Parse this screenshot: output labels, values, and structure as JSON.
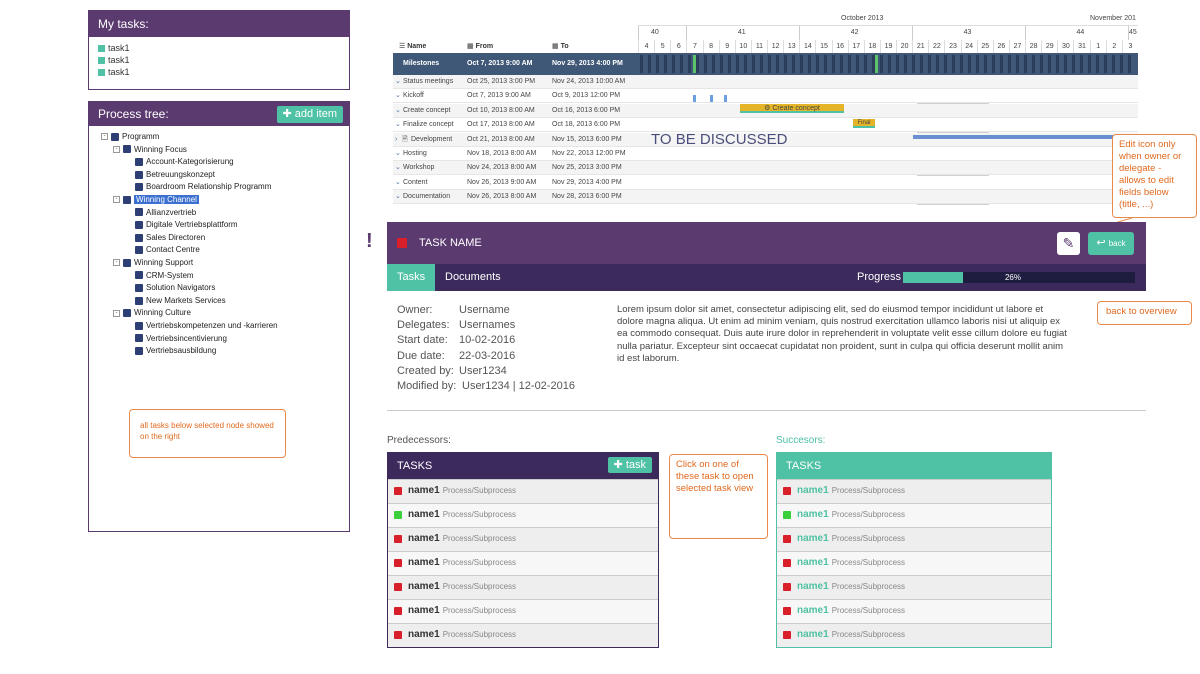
{
  "my_tasks": {
    "title": "My tasks:",
    "items": [
      "task1",
      "task1",
      "task1"
    ]
  },
  "process_tree": {
    "title": "Process tree:",
    "add_label": "add item",
    "nodes": [
      {
        "label": "Programm",
        "level": 0,
        "toggle": "-"
      },
      {
        "label": "Winning Focus",
        "level": 1,
        "toggle": "-"
      },
      {
        "label": "Account-Kategorisierung",
        "level": 2
      },
      {
        "label": "Betreuungskonzept",
        "level": 2
      },
      {
        "label": "Boardroom Relationship Programm",
        "level": 2
      },
      {
        "label": "Winning Channel",
        "level": 1,
        "toggle": "-",
        "selected": true
      },
      {
        "label": "Allianzvertrieb",
        "level": 2
      },
      {
        "label": "Digitale Vertriebsplattform",
        "level": 2
      },
      {
        "label": "Sales Directoren",
        "level": 2
      },
      {
        "label": "Contact Centre",
        "level": 2
      },
      {
        "label": "Winning Support",
        "level": 1,
        "toggle": "-"
      },
      {
        "label": "CRM-System",
        "level": 2
      },
      {
        "label": "Solution Navigators",
        "level": 2
      },
      {
        "label": "New Markets Services",
        "level": 2
      },
      {
        "label": "Winning Culture",
        "level": 1,
        "toggle": "-"
      },
      {
        "label": "Vertriebskompetenzen und -karrieren",
        "level": 2
      },
      {
        "label": "Vertriebsincentivierung",
        "level": 2
      },
      {
        "label": "Vertriebsausbildung",
        "level": 2
      }
    ]
  },
  "notes": {
    "tree_note": "all tasks below selected node showed on the right",
    "edit_note": "Edit icon only when owner or delegate - allows to edit fields below (title, ...)",
    "back_note": "back to overview",
    "click_note": "Click on one of these task to open selected task view"
  },
  "gantt": {
    "month1": "October 2013",
    "month2": "November 201",
    "weeks": [
      "40",
      "41",
      "42",
      "43",
      "44",
      "45"
    ],
    "days": [
      "4",
      "5",
      "6",
      "7",
      "8",
      "9",
      "10",
      "11",
      "12",
      "13",
      "14",
      "15",
      "16",
      "17",
      "18",
      "19",
      "20",
      "21",
      "22",
      "23",
      "24",
      "25",
      "26",
      "27",
      "28",
      "29",
      "30",
      "31",
      "1",
      "2",
      "3"
    ],
    "col_name": "Name",
    "col_from": "From",
    "col_to": "To",
    "milestones": {
      "name": "Milestones",
      "from": "Oct 7, 2013 9:00 AM",
      "to": "Nov 29, 2013 4:00 PM"
    },
    "rows": [
      {
        "name": "Status meetings",
        "from": "Oct 25, 2013 3:00 PM",
        "to": "Nov 24, 2013 10:00 AM"
      },
      {
        "name": "Kickoff",
        "from": "Oct 7, 2013 9:00 AM",
        "to": "Oct 9, 2013 12:00 PM"
      },
      {
        "name": "Create concept",
        "from": "Oct 10, 2013 8:00 AM",
        "to": "Oct 16, 2013 6:00 PM"
      },
      {
        "name": "Finalize concept",
        "from": "Oct 17, 2013 8:00 AM",
        "to": "Oct 18, 2013 6:00 PM"
      },
      {
        "name": "Development",
        "from": "Oct 21, 2013 8:00 AM",
        "to": "Nov 15, 2013 6:00 PM"
      },
      {
        "name": "Hosting",
        "from": "Nov 18, 2013 8:00 AM",
        "to": "Nov 22, 2013 12:00 PM"
      },
      {
        "name": "Workshop",
        "from": "Nov 24, 2013 8:00 AM",
        "to": "Nov 25, 2013 3:00 PM"
      },
      {
        "name": "Content",
        "from": "Nov 26, 2013 9:00 AM",
        "to": "Nov 29, 2013 4:00 PM"
      },
      {
        "name": "Documentation",
        "from": "Nov 26, 2013 8:00 AM",
        "to": "Nov 28, 2013 6:00 PM"
      }
    ],
    "bar_create": "Create concept",
    "bar_final": "Final",
    "overlay": "TO BE DISCUSSED"
  },
  "task": {
    "alert": "!",
    "name": "TASK NAME",
    "back_label": "back",
    "tabs": [
      "Tasks",
      "Documents"
    ],
    "progress_label": "Progress",
    "progress_text": "26%",
    "progress_value": 0.26,
    "fields": [
      {
        "label": "Owner:",
        "value": "Username"
      },
      {
        "label": "Delegates:",
        "value": "Usernames"
      },
      {
        "label": "Start date:",
        "value": "10-02-2016"
      },
      {
        "label": "Due date:",
        "value": "22-03-2016"
      },
      {
        "label": "Created by:",
        "value": "User1234"
      },
      {
        "label": "Modified by:",
        "value": "User1234 | 12-02-2016"
      }
    ],
    "description": "Lorem ipsum dolor sit amet, consectetur adipiscing elit, sed do eiusmod tempor incididunt ut labore et dolore magna aliqua. Ut enim ad minim veniam, quis nostrud exercitation ullamco laboris nisi ut aliquip ex ea commodo consequat. Duis aute irure dolor in reprehenderit in voluptate velit esse cillum dolore eu fugiat nulla pariatur. Excepteur sint occaecat cupidatat non proident, sunt in culpa qui officia deserunt mollit anim id est laborum."
  },
  "predecessors": {
    "title": "Predecessors:",
    "header": "TASKS",
    "add_label": "task",
    "rows": [
      {
        "name": "name1",
        "path": "Process/Subprocess",
        "status": "red"
      },
      {
        "name": "name1",
        "path": "Process/Subprocess",
        "status": "green"
      },
      {
        "name": "name1",
        "path": "Process/Subprocess",
        "status": "red"
      },
      {
        "name": "name1",
        "path": "Process/Subprocess",
        "status": "red"
      },
      {
        "name": "name1",
        "path": "Process/Subprocess",
        "status": "red"
      },
      {
        "name": "name1",
        "path": "Process/Subprocess",
        "status": "red"
      },
      {
        "name": "name1",
        "path": "Process/Subprocess",
        "status": "red"
      }
    ]
  },
  "successors": {
    "title": "Succesors:",
    "header": "TASKS",
    "rows": [
      {
        "name": "name1",
        "path": "Process/Subprocess",
        "status": "red"
      },
      {
        "name": "name1",
        "path": "Process/Subprocess",
        "status": "green"
      },
      {
        "name": "name1",
        "path": "Process/Subprocess",
        "status": "red"
      },
      {
        "name": "name1",
        "path": "Process/Subprocess",
        "status": "red"
      },
      {
        "name": "name1",
        "path": "Process/Subprocess",
        "status": "red"
      },
      {
        "name": "name1",
        "path": "Process/Subprocess",
        "status": "red"
      },
      {
        "name": "name1",
        "path": "Process/Subprocess",
        "status": "red"
      }
    ]
  },
  "colors": {
    "purple": "#5b3a70",
    "dark_purple": "#3d2a5c",
    "teal": "#4fc1a4",
    "red": "#d9202a",
    "green": "#3ccf3c",
    "note": "#e88a4a"
  }
}
